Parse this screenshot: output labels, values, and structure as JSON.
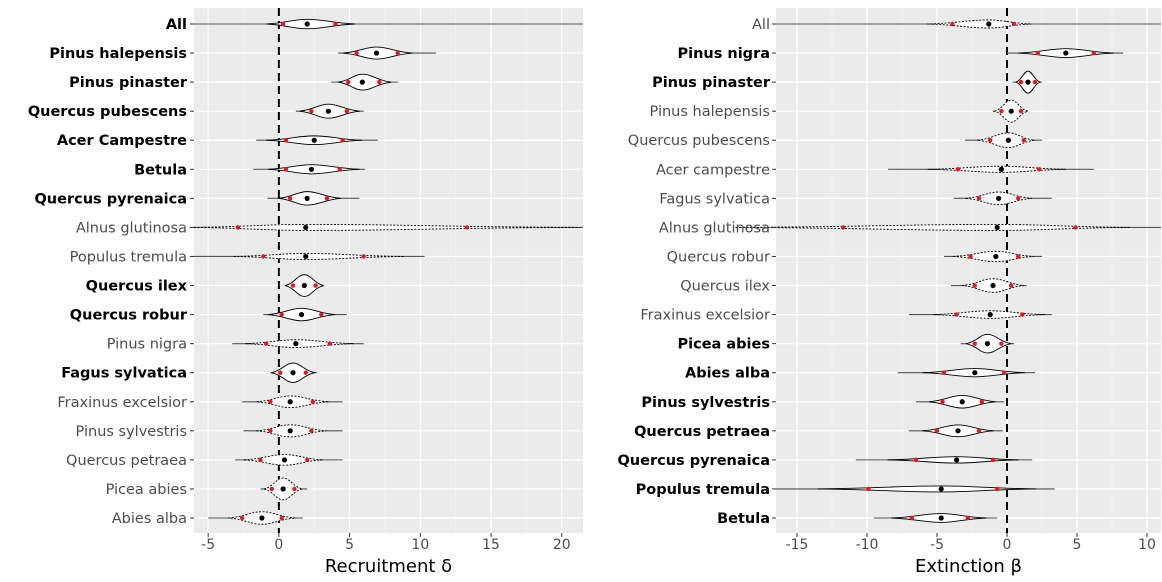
{
  "chart_data": [
    {
      "type": "violin",
      "xlabel": "Recruitment δ",
      "xlim": [
        -6.0,
        21.5
      ],
      "xticks": [
        -5,
        0,
        5,
        10,
        15,
        20
      ],
      "reference_line_x": 0,
      "grid": true,
      "legend": "none",
      "point_colors": {
        "mean": "#000000",
        "interval": "#e31a1c"
      },
      "categories": [
        {
          "label": "All",
          "bold": true,
          "mean": 2.0,
          "ci_lo": 0.3,
          "ci_hi": 4.0,
          "range_lo": -6.0,
          "range_hi": 21.5,
          "solid": true
        },
        {
          "label": "Pinus halepensis",
          "bold": true,
          "mean": 6.9,
          "ci_lo": 5.5,
          "ci_hi": 8.4,
          "range_lo": 4.2,
          "range_hi": 11.1,
          "solid": true
        },
        {
          "label": "Pinus pinaster",
          "bold": true,
          "mean": 5.9,
          "ci_lo": 4.9,
          "ci_hi": 7.1,
          "range_lo": 3.7,
          "range_hi": 8.4,
          "solid": true
        },
        {
          "label": "Quercus pubescens",
          "bold": true,
          "mean": 3.5,
          "ci_lo": 2.3,
          "ci_hi": 4.8,
          "range_lo": 1.2,
          "range_hi": 6.0,
          "solid": true
        },
        {
          "label": "Acer Campestre",
          "bold": true,
          "mean": 2.5,
          "ci_lo": 0.5,
          "ci_hi": 4.5,
          "range_lo": -1.6,
          "range_hi": 7.0,
          "solid": true
        },
        {
          "label": "Betula",
          "bold": true,
          "mean": 2.3,
          "ci_lo": 0.5,
          "ci_hi": 4.3,
          "range_lo": -1.8,
          "range_hi": 6.1,
          "solid": true
        },
        {
          "label": "Quercus pyrenaica",
          "bold": true,
          "mean": 2.0,
          "ci_lo": 0.8,
          "ci_hi": 3.4,
          "range_lo": -0.8,
          "range_hi": 5.7,
          "solid": true
        },
        {
          "label": "Alnus glutinosa",
          "bold": false,
          "mean": 1.9,
          "ci_lo": -2.9,
          "ci_hi": 13.3,
          "range_lo": -6.0,
          "range_hi": 21.5,
          "solid": false
        },
        {
          "label": "Populus tremula",
          "bold": false,
          "mean": 1.9,
          "ci_lo": -1.1,
          "ci_hi": 6.0,
          "range_lo": -6.0,
          "range_hi": 10.3,
          "solid": false
        },
        {
          "label": "Quercus ilex",
          "bold": true,
          "mean": 1.8,
          "ci_lo": 1.0,
          "ci_hi": 2.6,
          "range_lo": 0.5,
          "range_hi": 3.2,
          "solid": true
        },
        {
          "label": "Quercus robur",
          "bold": true,
          "mean": 1.6,
          "ci_lo": 0.2,
          "ci_hi": 3.0,
          "range_lo": -1.1,
          "range_hi": 4.8,
          "solid": true
        },
        {
          "label": "Pinus nigra",
          "bold": false,
          "mean": 1.2,
          "ci_lo": -0.9,
          "ci_hi": 3.6,
          "range_lo": -3.3,
          "range_hi": 6.0,
          "solid": false
        },
        {
          "label": "Fagus sylvatica",
          "bold": true,
          "mean": 1.0,
          "ci_lo": 0.1,
          "ci_hi": 1.9,
          "range_lo": -0.6,
          "range_hi": 2.7,
          "solid": true
        },
        {
          "label": "Fraxinus excelsior",
          "bold": false,
          "mean": 0.8,
          "ci_lo": -0.6,
          "ci_hi": 2.4,
          "range_lo": -2.6,
          "range_hi": 4.5,
          "solid": false
        },
        {
          "label": "Pinus sylvestris",
          "bold": false,
          "mean": 0.8,
          "ci_lo": -0.6,
          "ci_hi": 2.3,
          "range_lo": -2.5,
          "range_hi": 4.5,
          "solid": false
        },
        {
          "label": "Quercus petraea",
          "bold": false,
          "mean": 0.4,
          "ci_lo": -1.3,
          "ci_hi": 2.0,
          "range_lo": -3.1,
          "range_hi": 4.5,
          "solid": false
        },
        {
          "label": "Picea abies",
          "bold": false,
          "mean": 0.3,
          "ci_lo": -0.5,
          "ci_hi": 1.1,
          "range_lo": -1.3,
          "range_hi": 2.0,
          "solid": false
        },
        {
          "label": "Abies alba",
          "bold": false,
          "mean": -1.2,
          "ci_lo": -2.6,
          "ci_hi": 0.2,
          "range_lo": -5.0,
          "range_hi": 1.7,
          "solid": false
        }
      ]
    },
    {
      "type": "violin",
      "xlabel": "Extinction β",
      "xlim": [
        -16.5,
        11.0
      ],
      "xticks": [
        -15,
        -10,
        -5,
        0,
        5,
        10
      ],
      "reference_line_x": 0,
      "grid": true,
      "legend": "none",
      "point_colors": {
        "mean": "#000000",
        "interval": "#e31a1c"
      },
      "categories": [
        {
          "label": "All",
          "bold": false,
          "mean": -1.3,
          "ci_lo": -3.9,
          "ci_hi": 0.5,
          "range_lo": -16.5,
          "range_hi": 11.0,
          "solid": false
        },
        {
          "label": "Pinus nigra",
          "bold": true,
          "mean": 4.2,
          "ci_lo": 2.2,
          "ci_hi": 6.2,
          "range_lo": 0.0,
          "range_hi": 8.3,
          "solid": true
        },
        {
          "label": "Pinus pinaster",
          "bold": true,
          "mean": 1.5,
          "ci_lo": 1.0,
          "ci_hi": 2.0,
          "range_lo": 0.4,
          "range_hi": 2.5,
          "solid": true
        },
        {
          "label": "Pinus halepensis",
          "bold": false,
          "mean": 0.3,
          "ci_lo": -0.4,
          "ci_hi": 1.0,
          "range_lo": -1.0,
          "range_hi": 1.5,
          "solid": false
        },
        {
          "label": "Quercus pubescens",
          "bold": false,
          "mean": 0.1,
          "ci_lo": -1.2,
          "ci_hi": 1.2,
          "range_lo": -3.0,
          "range_hi": 2.5,
          "solid": false
        },
        {
          "label": "Acer campestre",
          "bold": false,
          "mean": -0.4,
          "ci_lo": -3.5,
          "ci_hi": 2.3,
          "range_lo": -8.5,
          "range_hi": 6.2,
          "solid": false
        },
        {
          "label": "Fagus sylvatica",
          "bold": false,
          "mean": -0.6,
          "ci_lo": -2.0,
          "ci_hi": 0.8,
          "range_lo": -3.8,
          "range_hi": 3.2,
          "solid": false
        },
        {
          "label": "Alnus glutinosa",
          "bold": false,
          "mean": -0.7,
          "ci_lo": -11.7,
          "ci_hi": 4.9,
          "range_lo": -16.5,
          "range_hi": 11.0,
          "solid": false
        },
        {
          "label": "Quercus robur",
          "bold": false,
          "mean": -0.8,
          "ci_lo": -2.6,
          "ci_hi": 0.8,
          "range_lo": -4.5,
          "range_hi": 2.5,
          "solid": false
        },
        {
          "label": "Quercus ilex",
          "bold": false,
          "mean": -1.0,
          "ci_lo": -2.3,
          "ci_hi": 0.3,
          "range_lo": -4.0,
          "range_hi": 1.4,
          "solid": false
        },
        {
          "label": "Fraxinus excelsior",
          "bold": false,
          "mean": -1.2,
          "ci_lo": -3.6,
          "ci_hi": 1.1,
          "range_lo": -7.0,
          "range_hi": 3.2,
          "solid": false
        },
        {
          "label": "Picea abies",
          "bold": true,
          "mean": -1.4,
          "ci_lo": -2.3,
          "ci_hi": -0.4,
          "range_lo": -3.3,
          "range_hi": 0.5,
          "solid": true
        },
        {
          "label": "Abies alba",
          "bold": true,
          "mean": -2.3,
          "ci_lo": -4.5,
          "ci_hi": -0.2,
          "range_lo": -7.8,
          "range_hi": 2.0,
          "solid": true
        },
        {
          "label": "Pinus sylvestris",
          "bold": true,
          "mean": -3.2,
          "ci_lo": -4.6,
          "ci_hi": -1.8,
          "range_lo": -6.5,
          "range_hi": -0.2,
          "solid": true
        },
        {
          "label": "Quercus petraea",
          "bold": true,
          "mean": -3.5,
          "ci_lo": -5.0,
          "ci_hi": -2.0,
          "range_lo": -7.0,
          "range_hi": -0.3,
          "solid": true
        },
        {
          "label": "Quercus pyrenaica",
          "bold": true,
          "mean": -3.6,
          "ci_lo": -6.5,
          "ci_hi": -1.0,
          "range_lo": -10.8,
          "range_hi": 1.8,
          "solid": true
        },
        {
          "label": "Populus tremula",
          "bold": true,
          "mean": -4.7,
          "ci_lo": -9.9,
          "ci_hi": -0.7,
          "range_lo": -16.5,
          "range_hi": 3.4,
          "solid": true
        },
        {
          "label": "Betula",
          "bold": true,
          "mean": -4.7,
          "ci_lo": -6.8,
          "ci_hi": -2.8,
          "range_lo": -9.5,
          "range_hi": -0.7,
          "solid": true
        }
      ]
    }
  ]
}
